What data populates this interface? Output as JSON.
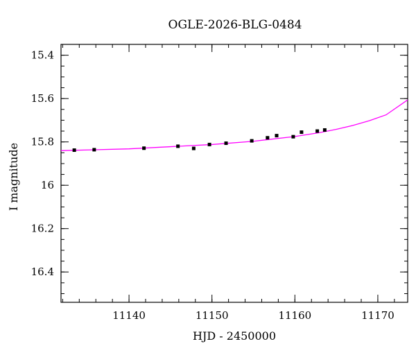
{
  "chart_data": {
    "type": "scatter",
    "title": "OGLE-2026-BLG-0484",
    "xlabel": "HJD - 2450000",
    "ylabel": "I magnitude",
    "xlim": [
      11131.8,
      11173.6
    ],
    "ylim": [
      16.54,
      15.35
    ],
    "y_inverted": true,
    "grid": false,
    "legend": "none",
    "x_ticks": [
      {
        "value": 11140,
        "label": "11140"
      },
      {
        "value": 11150,
        "label": "11150"
      },
      {
        "value": 11160,
        "label": "11160"
      },
      {
        "value": 11170,
        "label": "11170"
      }
    ],
    "y_ticks": [
      {
        "value": 15.4,
        "label": "15.4"
      },
      {
        "value": 15.6,
        "label": "15.6"
      },
      {
        "value": 15.8,
        "label": "15.8"
      },
      {
        "value": 16.0,
        "label": "16"
      },
      {
        "value": 16.2,
        "label": "16.2"
      },
      {
        "value": 16.4,
        "label": "16.4"
      }
    ],
    "x_minor_step": 2,
    "y_minor_step": 0.05,
    "series": [
      {
        "type": "scatter",
        "color": "#000000",
        "marker": "square-with-errorbar",
        "points": [
          {
            "x": 11133.4,
            "y": 15.838,
            "err": 0.006
          },
          {
            "x": 11135.8,
            "y": 15.836,
            "err": 0.006
          },
          {
            "x": 11141.8,
            "y": 15.829,
            "err": 0.006
          },
          {
            "x": 11145.9,
            "y": 15.82,
            "err": 0.006
          },
          {
            "x": 11147.8,
            "y": 15.83,
            "err": 0.006
          },
          {
            "x": 11149.7,
            "y": 15.812,
            "err": 0.006
          },
          {
            "x": 11151.7,
            "y": 15.806,
            "err": 0.006
          },
          {
            "x": 11154.8,
            "y": 15.795,
            "err": 0.006
          },
          {
            "x": 11156.7,
            "y": 15.781,
            "err": 0.006
          },
          {
            "x": 11157.8,
            "y": 15.771,
            "err": 0.006
          },
          {
            "x": 11159.8,
            "y": 15.776,
            "err": 0.006
          },
          {
            "x": 11160.8,
            "y": 15.755,
            "err": 0.006
          },
          {
            "x": 11162.7,
            "y": 15.75,
            "err": 0.006
          },
          {
            "x": 11163.6,
            "y": 15.745,
            "err": 0.006
          }
        ]
      },
      {
        "type": "line",
        "color": "#ff00ff",
        "points": [
          {
            "x": 11131.8,
            "y": 15.84
          },
          {
            "x": 11135,
            "y": 15.837
          },
          {
            "x": 11140,
            "y": 15.832
          },
          {
            "x": 11145,
            "y": 15.822
          },
          {
            "x": 11150,
            "y": 15.812
          },
          {
            "x": 11155,
            "y": 15.797
          },
          {
            "x": 11160,
            "y": 15.775
          },
          {
            "x": 11163,
            "y": 15.757
          },
          {
            "x": 11165,
            "y": 15.742
          },
          {
            "x": 11167,
            "y": 15.724
          },
          {
            "x": 11169,
            "y": 15.702
          },
          {
            "x": 11171,
            "y": 15.675
          },
          {
            "x": 11173.6,
            "y": 15.606
          }
        ]
      }
    ]
  }
}
